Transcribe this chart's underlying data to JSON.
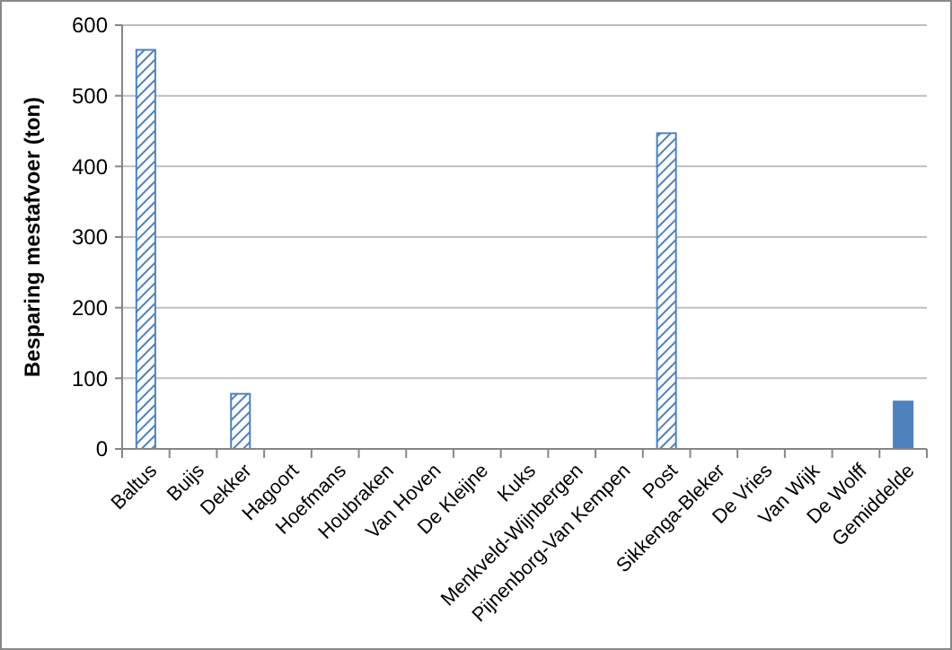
{
  "chart_data": {
    "type": "bar",
    "ylabel": "Besparing mestafvoer (ton)",
    "categories": [
      "Baltus",
      "Buijs",
      "Dekker",
      "Hagoort",
      "Hoefmans",
      "Houbraken",
      "Van Hoven",
      "De Kleijne",
      "Kuks",
      "Menkveld-Wijnbergen",
      "Pijnenborg-Van Kempen",
      "Post",
      "Sikkenga-Bleker",
      "De Vries",
      "Van Wijk",
      "De Wolff",
      "Gemiddelde"
    ],
    "series": [
      {
        "color": "#4f81bd",
        "values": [
          565,
          0,
          78,
          0,
          0,
          0,
          0,
          0,
          0,
          0,
          0,
          447,
          0,
          0,
          0,
          0,
          null
        ]
      },
      {
        "color": "#4f81bd",
        "values": [
          null,
          null,
          null,
          null,
          null,
          null,
          null,
          null,
          null,
          null,
          null,
          null,
          null,
          null,
          null,
          null,
          67
        ]
      }
    ],
    "ylim": [
      0,
      600
    ],
    "yticks": [
      0,
      100,
      200,
      300,
      400,
      500,
      600
    ],
    "grid": "y"
  }
}
